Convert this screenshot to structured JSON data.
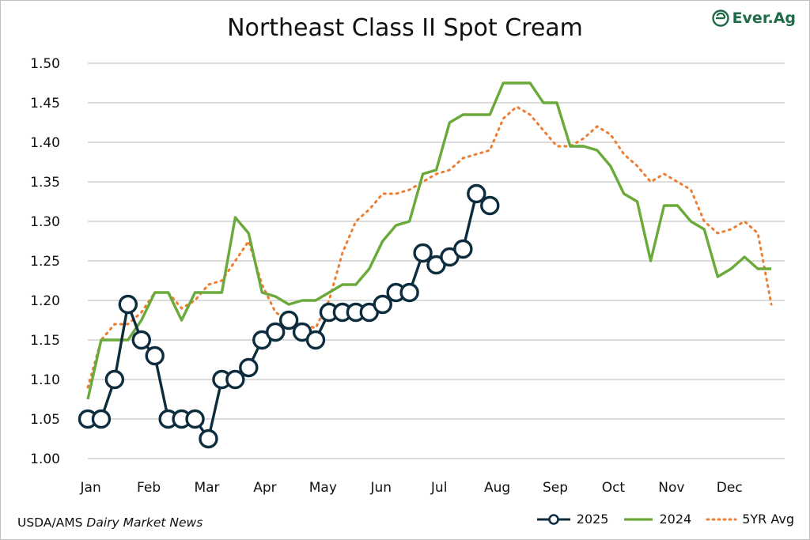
{
  "header": {
    "title": "Northeast Class II Spot Cream",
    "logo_text": "Ever.Ag"
  },
  "footer": {
    "source_prefix": "USDA/AMS ",
    "source_italic": "Dairy Market News"
  },
  "colors": {
    "s2025": "#0d2d3e",
    "s2024": "#6aaa3a",
    "avg": "#ed7d31",
    "grid": "#c8c8c8",
    "logo": "#1f6b48"
  },
  "chart_data": {
    "type": "line",
    "title": "Northeast Class II Spot Cream",
    "xlabel": "",
    "ylabel": "",
    "ylim": [
      1.0,
      1.5
    ],
    "x_range": [
      0,
      52
    ],
    "yticks": [
      "1.00",
      "1.05",
      "1.10",
      "1.15",
      "1.20",
      "1.25",
      "1.30",
      "1.35",
      "1.40",
      "1.45",
      "1.50"
    ],
    "month_labels": [
      "Jan",
      "Feb",
      "Mar",
      "Apr",
      "May",
      "Jun",
      "Jul",
      "Aug",
      "Sep",
      "Oct",
      "Nov",
      "Dec"
    ],
    "grid": true,
    "legend_position": "bottom-right",
    "series": [
      {
        "name": "2025",
        "style": "line-with-open-circles",
        "x": [
          0,
          1,
          2,
          3,
          4,
          5,
          6,
          7,
          8,
          9,
          10,
          11,
          12,
          13,
          14,
          15,
          16,
          17,
          18,
          19,
          20,
          21,
          22,
          23,
          24,
          25,
          26,
          27,
          28,
          29
        ],
        "values": [
          1.05,
          1.05,
          1.1,
          1.195,
          1.15,
          1.13,
          1.05,
          1.05,
          1.05,
          1.025,
          1.1,
          1.1,
          1.115,
          1.15,
          1.16,
          1.175,
          1.16,
          1.15,
          1.185,
          1.185,
          1.185,
          1.185,
          1.195,
          1.21,
          1.21,
          1.26,
          1.245,
          1.255,
          1.265,
          1.335
        ]
      },
      {
        "name": "2024",
        "style": "solid",
        "x": [
          0,
          1,
          2,
          3,
          4,
          5,
          6,
          7,
          8,
          9,
          10,
          11,
          12,
          13,
          14,
          15,
          16,
          17,
          18,
          19,
          20,
          21,
          22,
          23,
          24,
          25,
          26,
          27,
          28,
          29,
          30,
          31,
          32,
          33,
          34,
          35,
          36,
          37,
          38,
          39,
          40,
          41,
          42,
          43,
          44,
          45,
          46,
          47,
          48,
          49,
          50,
          51
        ],
        "values": [
          1.075,
          1.15,
          1.15,
          1.15,
          1.175,
          1.21,
          1.21,
          1.175,
          1.21,
          1.21,
          1.21,
          1.305,
          1.285,
          1.21,
          1.205,
          1.195,
          1.2,
          1.2,
          1.21,
          1.22,
          1.22,
          1.24,
          1.275,
          1.295,
          1.3,
          1.36,
          1.365,
          1.425,
          1.435,
          1.435,
          1.435,
          1.475,
          1.475,
          1.475,
          1.45,
          1.45,
          1.395,
          1.395,
          1.39,
          1.37,
          1.335,
          1.325,
          1.25,
          1.32,
          1.32,
          1.3,
          1.29,
          1.23,
          1.24,
          1.255,
          1.24,
          1.24
        ]
      },
      {
        "name": "5YR Avg",
        "style": "dotted",
        "x": [
          0,
          1,
          2,
          3,
          4,
          5,
          6,
          7,
          8,
          9,
          10,
          11,
          12,
          13,
          14,
          15,
          16,
          17,
          18,
          19,
          20,
          21,
          22,
          23,
          24,
          25,
          26,
          27,
          28,
          29,
          30,
          31,
          32,
          33,
          34,
          35,
          36,
          37,
          38,
          39,
          40,
          41,
          42,
          43,
          44,
          45,
          46,
          47,
          48,
          49,
          50,
          51
        ],
        "values": [
          1.09,
          1.15,
          1.17,
          1.17,
          1.185,
          1.21,
          1.21,
          1.19,
          1.2,
          1.22,
          1.225,
          1.25,
          1.275,
          1.22,
          1.185,
          1.175,
          1.17,
          1.165,
          1.2,
          1.26,
          1.3,
          1.315,
          1.335,
          1.335,
          1.34,
          1.35,
          1.36,
          1.365,
          1.38,
          1.385,
          1.39,
          1.43,
          1.445,
          1.435,
          1.415,
          1.395,
          1.395,
          1.405,
          1.42,
          1.41,
          1.385,
          1.37,
          1.35,
          1.36,
          1.35,
          1.34,
          1.3,
          1.285,
          1.29,
          1.3,
          1.285,
          1.195
        ]
      },
      {
        "name": "2025 (final point)",
        "style": "circle-only",
        "x": [
          30
        ],
        "values": [
          1.32
        ]
      }
    ]
  },
  "legend": {
    "items": [
      {
        "label": "2025"
      },
      {
        "label": "2024"
      },
      {
        "label": "5YR Avg"
      }
    ]
  }
}
